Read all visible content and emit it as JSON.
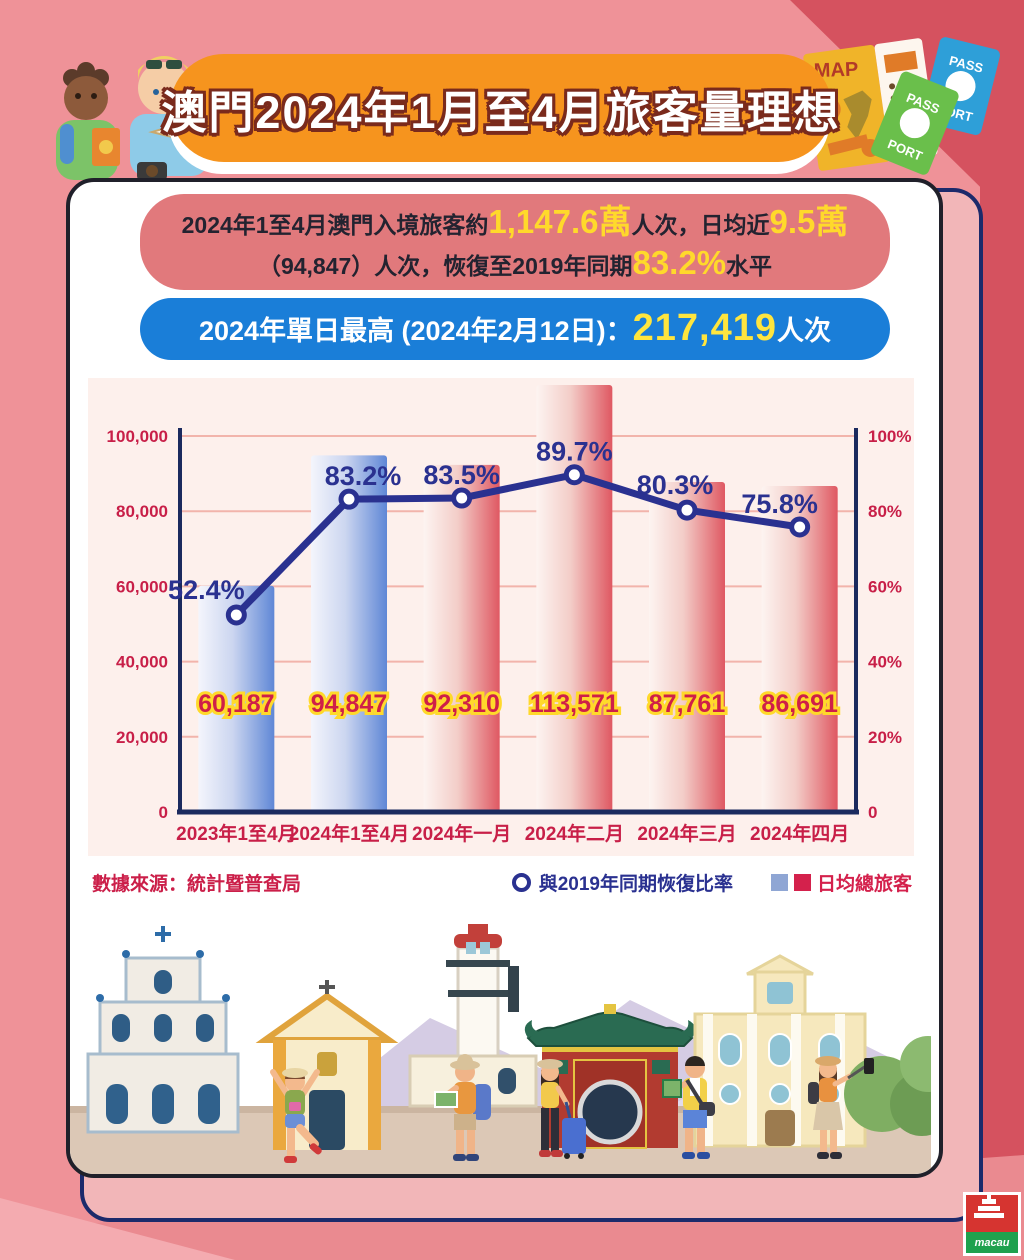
{
  "header": {
    "title": "澳門2024年1月至4月旅客量理想"
  },
  "summary_pill": {
    "line1": {
      "s1": "2024年1至4月澳門入境旅客約",
      "s2": "1,147.6萬",
      "s3": "人次，日均近",
      "s4": "9.5萬"
    },
    "line2": {
      "s1": "（94,847）人次，恢復至2019年同期",
      "s2": "83.2%",
      "s3": "水平"
    }
  },
  "peak_pill": {
    "s1": "2024年單日最高 (2024年2月12日)：",
    "s2": "217,419",
    "s3": "人次"
  },
  "chart_data": {
    "type": "bar+line",
    "categories": [
      "2023年1至4月",
      "2024年1至4月",
      "2024年一月",
      "2024年二月",
      "2024年三月",
      "2024年四月"
    ],
    "series": [
      {
        "name": "日均總旅客",
        "type": "bar",
        "values": [
          60187,
          94847,
          92310,
          113571,
          87761,
          86691
        ],
        "labels": [
          "60,187",
          "94,847",
          "92,310",
          "113,571",
          "87,761",
          "86,691"
        ],
        "bar_colors": [
          "blue",
          "blue",
          "red",
          "red",
          "red",
          "red"
        ]
      },
      {
        "name": "與2019年同期恢復比率",
        "type": "line",
        "values": [
          52.4,
          83.2,
          83.5,
          89.7,
          80.3,
          75.8
        ],
        "labels": [
          "52.4%",
          "83.2%",
          "83.5%",
          "89.7%",
          "80.3%",
          "75.8%"
        ]
      }
    ],
    "left_axis": {
      "max": 100000,
      "ticks_bottom_up": [
        "0",
        "20,000",
        "40,000",
        "60,000",
        "80,000",
        "100,000"
      ]
    },
    "right_axis": {
      "max": 100,
      "ticks_bottom_up": [
        "0",
        "20%",
        "40%",
        "60%",
        "80%",
        "100%"
      ]
    },
    "grid": true,
    "legend_position": "bottom-right"
  },
  "legend": {
    "source": "數據來源：統計暨普查局",
    "line_label": "與2019年同期恢復比率",
    "bar_label": "日均總旅客"
  },
  "decorations": {
    "map_label": "MAP",
    "passport_top": "PASS",
    "passport_bottom": "PORT",
    "logo_text": "macau"
  },
  "colors": {
    "background": "#ef9298",
    "background_dark": "#d5525f",
    "banner": "#f6941e",
    "summary_pill": "#e1797c",
    "peak_pill": "#1a7ed8",
    "highlight_yellow": "#ffd92b",
    "crimson": "#c81f48",
    "navy_line": "#2a3190",
    "axis_navy": "#1b2a5e",
    "bar_blue": "#5f87d6",
    "bar_red": "#df5862",
    "panel_pink": "#fdf0ec",
    "grid_pink": "#f2b4ab"
  }
}
